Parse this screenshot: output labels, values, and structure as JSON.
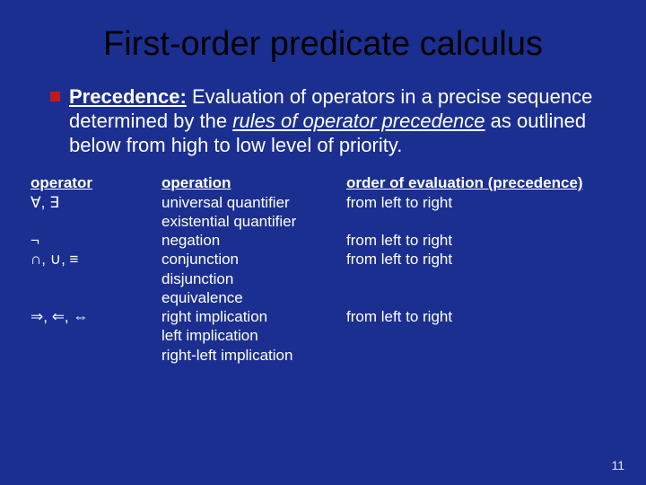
{
  "colors": {
    "background": "#1b2f91",
    "text": "#ffffff",
    "title": "#000000",
    "bullet_fill": "#c41818",
    "bullet_shadow": "#5a0a0a",
    "page_num": "#e8e8e8"
  },
  "fonts": {
    "title_size": 38,
    "body_size": 22,
    "table_size": 17,
    "pagenum_size": 14
  },
  "title": "First-order predicate calculus",
  "paragraph": {
    "lead_bold": "Precedence:",
    "rest": " Evaluation of operators in a precise sequence determined by the ",
    "ital1": "rules of operator precedence",
    "rest2": " as outlined below from high to low level of priority."
  },
  "table": {
    "headers": [
      "operator",
      "operation",
      "order of evaluation (precedence)"
    ],
    "rows": [
      {
        "op": "∀, ∃",
        "operation_lines": [
          "universal quantifier",
          "existential quantifier"
        ],
        "eval": "from left to right"
      },
      {
        "op": "¬",
        "operation_lines": [
          "negation"
        ],
        "eval": "from left to right"
      },
      {
        "op": "∩, ∪, ≡",
        "operation_lines": [
          "conjunction",
          "disjunction",
          "equivalence"
        ],
        "eval": "from left to right"
      },
      {
        "op": "⇒, ⇐, ⇔",
        "operation_lines": [
          "right implication",
          "left implication",
          "right-left implication"
        ],
        "eval": "from left to right"
      }
    ]
  },
  "page_number": "11"
}
